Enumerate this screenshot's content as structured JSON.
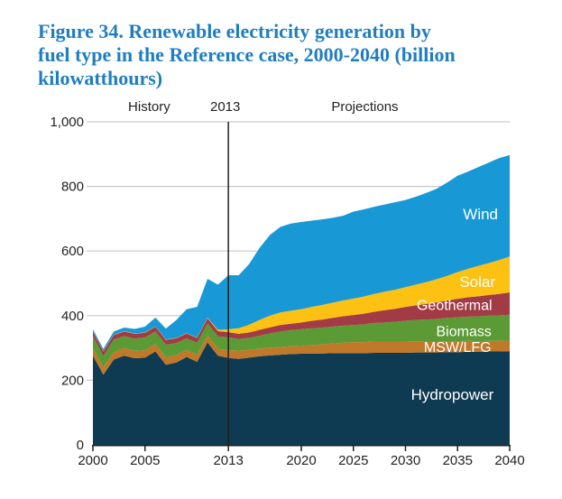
{
  "figure_title": {
    "lines": [
      "Figure 34. Renewable electricity generation by",
      "fuel type in the Reference case, 2000-2040 (billion",
      "kilowatthours)"
    ],
    "color": "#1f7ec0"
  },
  "chart_data": {
    "type": "area",
    "stacked": true,
    "title": "Figure 34. Renewable electricity generation by fuel type in the Reference case, 2000-2040 (billion kilowatthours)",
    "units": "billion kilowatthours",
    "xlim": [
      2000,
      2040
    ],
    "ylim": [
      0,
      1000
    ],
    "x_ticks": [
      2000,
      2005,
      2013,
      2020,
      2025,
      2030,
      2035,
      2040
    ],
    "x_tick_labels": [
      "2000",
      "2005",
      "2013",
      "2020",
      "2025",
      "2030",
      "2035",
      "2040"
    ],
    "y_ticks": [
      0,
      200,
      400,
      600,
      800,
      1000
    ],
    "y_tick_labels": [
      "0",
      "200",
      "400",
      "600",
      "800",
      "1,000"
    ],
    "grid": {
      "horizontal": true,
      "color": "#c9c9c9"
    },
    "axis_color": "#231f20",
    "divider": {
      "year": 2013,
      "color": "#231f20"
    },
    "header_labels": [
      {
        "text": "History",
        "year": 5.4
      },
      {
        "text": "2013",
        "year": 12.7
      },
      {
        "text": "Projections",
        "year": 26.1
      }
    ],
    "legend": "labels drawn inside areas, white text",
    "x": [
      2000,
      2001,
      2002,
      2003,
      2004,
      2005,
      2006,
      2007,
      2008,
      2009,
      2010,
      2011,
      2012,
      2013,
      2014,
      2015,
      2016,
      2017,
      2018,
      2019,
      2020,
      2021,
      2022,
      2023,
      2024,
      2025,
      2026,
      2027,
      2028,
      2029,
      2030,
      2031,
      2032,
      2033,
      2034,
      2035,
      2036,
      2037,
      2038,
      2039,
      2040
    ],
    "series": [
      {
        "name": "Hydropower",
        "color": "#0e3a52",
        "label": {
          "text": "Hydropower",
          "year": 34.5,
          "value": 156,
          "size": 17
        },
        "values": [
          276,
          217,
          264,
          276,
          268,
          270,
          289,
          248,
          255,
          272,
          257,
          317,
          276,
          269,
          266,
          270,
          274,
          277,
          279,
          281,
          282,
          283,
          283,
          284,
          284,
          284,
          284,
          285,
          285,
          285,
          285,
          286,
          286,
          286,
          287,
          287,
          288,
          288,
          289,
          289,
          290
        ]
      },
      {
        "name": "MSW/LFG",
        "color": "#c0782a",
        "label": {
          "text": "MSW/LFG",
          "year": 35.0,
          "value": 304,
          "size": 16
        },
        "values": [
          23,
          23,
          23,
          24,
          23,
          23,
          23,
          23,
          23,
          22,
          22,
          22,
          22,
          24,
          26,
          24,
          24,
          24,
          24,
          24,
          24,
          26,
          28,
          30,
          32,
          34,
          34,
          35,
          35,
          35,
          35,
          35,
          34,
          34,
          34,
          34,
          34,
          33,
          33,
          33,
          33
        ]
      },
      {
        "name": "Biomass",
        "color": "#5b9a35",
        "label": {
          "text": "Biomass",
          "year": 35.6,
          "value": 352,
          "size": 16
        },
        "values": [
          38,
          35,
          39,
          37,
          38,
          39,
          39,
          39,
          37,
          36,
          37,
          37,
          38,
          40,
          36,
          37,
          40,
          44,
          48,
          50,
          52,
          52,
          52,
          52,
          53,
          53,
          55,
          57,
          59,
          61,
          64,
          66,
          68,
          70,
          72,
          74,
          75,
          77,
          78,
          79,
          80
        ]
      },
      {
        "name": "Geothermal",
        "color": "#a23b45",
        "label": {
          "text": "Geothermal",
          "year": 34.7,
          "value": 433,
          "size": 16
        },
        "values": [
          14,
          14,
          14,
          14,
          15,
          15,
          15,
          15,
          15,
          15,
          15,
          16,
          16,
          16,
          16,
          17,
          18,
          19,
          20,
          20,
          21,
          23,
          25,
          27,
          29,
          31,
          33,
          35,
          38,
          40,
          43,
          45,
          48,
          51,
          54,
          57,
          60,
          62,
          64,
          66,
          69
        ]
      },
      {
        "name": "Solar",
        "color": "#fdc113",
        "label": {
          "text": "Solar",
          "year": 36.9,
          "value": 506,
          "size": 17
        },
        "values": [
          1,
          1,
          1,
          1,
          1,
          1,
          1,
          1,
          1,
          1,
          1,
          2,
          4,
          9,
          17,
          24,
          31,
          36,
          39,
          40,
          41,
          43,
          45,
          47,
          49,
          51,
          53,
          55,
          57,
          59,
          61,
          64,
          68,
          72,
          76,
          83,
          88,
          94,
          99,
          105,
          111
        ]
      },
      {
        "name": "Wind",
        "color": "#1899d5",
        "label": {
          "text": "Wind",
          "year": 37.2,
          "value": 715,
          "size": 17
        },
        "values": [
          6,
          7,
          10,
          11,
          14,
          18,
          27,
          34,
          55,
          74,
          95,
          120,
          140,
          167,
          164,
          188,
          223,
          250,
          265,
          270,
          270,
          267,
          265,
          263,
          262,
          269,
          270,
          270,
          270,
          271,
          270,
          272,
          276,
          280,
          289,
          298,
          301,
          306,
          311,
          316,
          314
        ]
      }
    ]
  }
}
